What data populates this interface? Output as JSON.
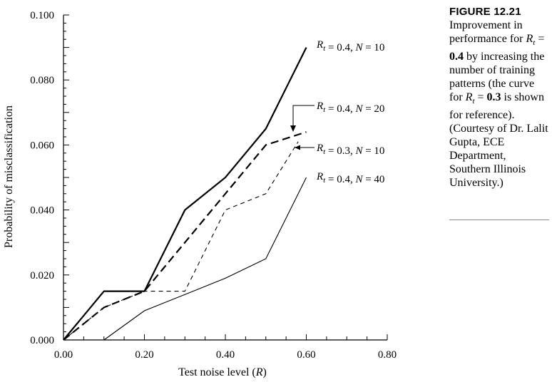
{
  "caption": {
    "label": "FIGURE 12.21",
    "text": "Improvement in performance for R_t = 0.4 by increasing the number of training patterns (the curve for R_t = 0.3 is shown for reference). (Courtesy of Dr. Lalit Gupta, ECE Department, Southern Illinois University.)"
  },
  "chart_data": {
    "type": "line",
    "title": "",
    "xlabel": "Test noise level (R)",
    "ylabel": "Probability of misclassification",
    "xlim": [
      0,
      0.8
    ],
    "ylim": [
      0,
      0.1
    ],
    "x_ticks": [
      "0.00",
      "0.20",
      "0.40",
      "0.60",
      "0.80"
    ],
    "y_ticks": [
      "0.000",
      "0.020",
      "0.040",
      "0.060",
      "0.080",
      "0.100"
    ],
    "grid": false,
    "series": [
      {
        "name": "Rt = 0.4, N = 10",
        "style": "solid-thick",
        "x": [
          0.0,
          0.1,
          0.2,
          0.3,
          0.4,
          0.5,
          0.6
        ],
        "y": [
          0.0,
          0.015,
          0.015,
          0.04,
          0.05,
          0.065,
          0.09
        ]
      },
      {
        "name": "Rt = 0.4, N = 20",
        "style": "dashed-thick",
        "x": [
          0.0,
          0.1,
          0.2,
          0.3,
          0.4,
          0.5,
          0.6
        ],
        "y": [
          0.0,
          0.01,
          0.015,
          0.03,
          0.045,
          0.06,
          0.064
        ]
      },
      {
        "name": "Rt = 0.3, N = 10",
        "style": "dashed-thin",
        "x": [
          0.0,
          0.1,
          0.2,
          0.3,
          0.4,
          0.5,
          0.58
        ],
        "y": [
          0.0,
          0.01,
          0.015,
          0.015,
          0.04,
          0.045,
          0.061
        ]
      },
      {
        "name": "Rt = 0.4, N = 40",
        "style": "solid-thin",
        "x": [
          0.1,
          0.2,
          0.3,
          0.4,
          0.5,
          0.6
        ],
        "y": [
          0.0,
          0.009,
          0.014,
          0.019,
          0.025,
          0.05
        ]
      }
    ],
    "annotations": [
      {
        "text": "Rt = 0.4, N = 10"
      },
      {
        "text": "Rt = 0.4, N = 20"
      },
      {
        "text": "Rt = 0.3, N = 10"
      },
      {
        "text": "Rt = 0.4, N = 40"
      }
    ]
  }
}
